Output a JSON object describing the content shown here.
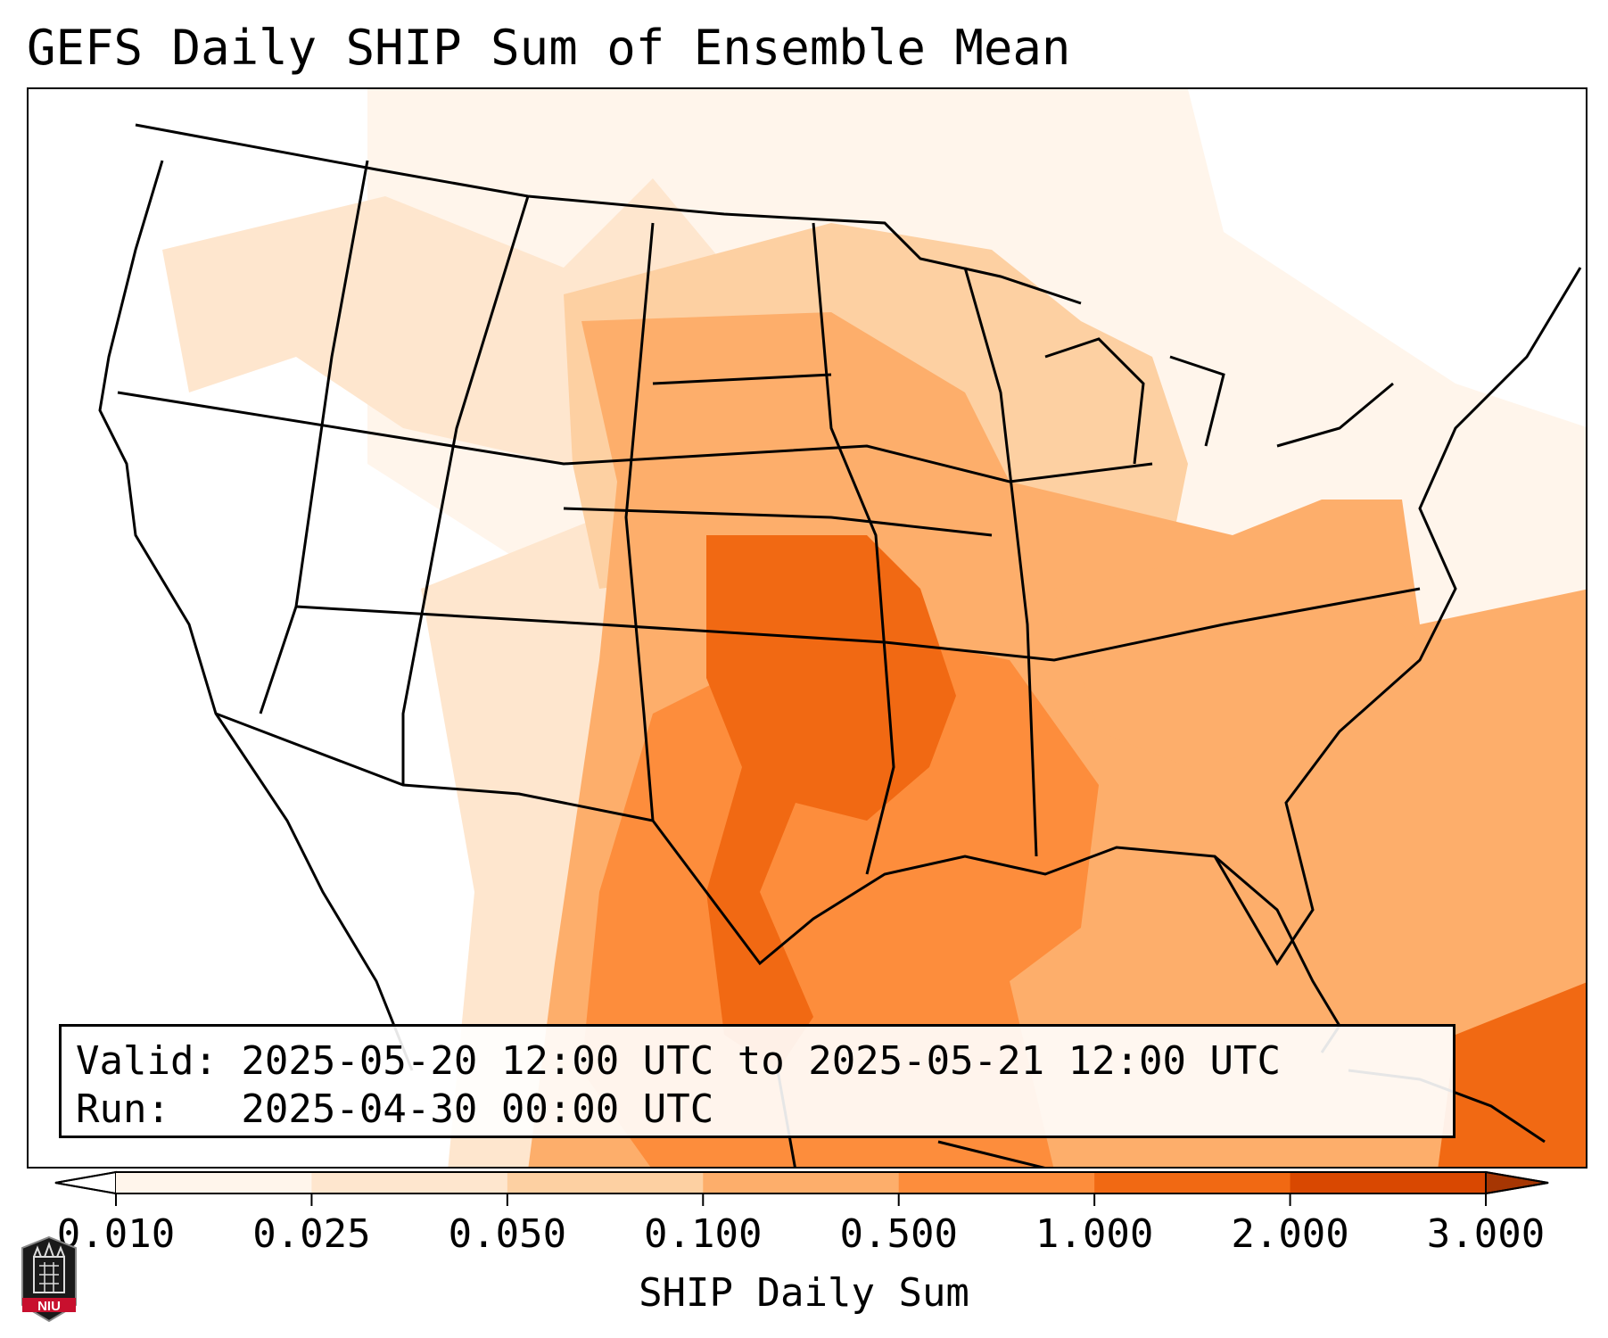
{
  "title": "GEFS Daily SHIP Sum of Ensemble Mean",
  "info": {
    "valid_line": "Valid: 2025-05-20 12:00 UTC to 2025-05-21 12:00 UTC",
    "run_line": "Run:   2025-04-30 00:00 UTC"
  },
  "colorbar": {
    "label": "SHIP Daily Sum",
    "ticks": [
      "0.010",
      "0.025",
      "0.050",
      "0.100",
      "0.500",
      "1.000",
      "2.000",
      "3.000"
    ],
    "colors": [
      "#fff5eb",
      "#fee6ce",
      "#fdd0a2",
      "#fdae6b",
      "#fd8d3c",
      "#f16913",
      "#d94801"
    ],
    "under_color": "#ffffff",
    "over_color": "#a63603"
  },
  "logo": {
    "text": "NIU"
  }
}
